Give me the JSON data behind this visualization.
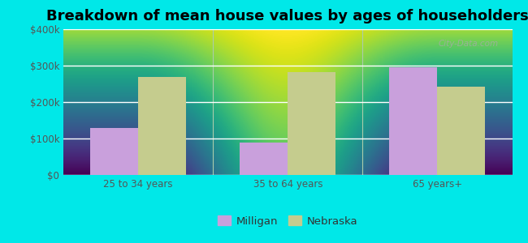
{
  "title": "Breakdown of mean house values by ages of householders",
  "categories": [
    "25 to 34 years",
    "35 to 64 years",
    "65 years+"
  ],
  "milligan_values": [
    130000,
    90000,
    295000
  ],
  "nebraska_values": [
    268000,
    283000,
    243000
  ],
  "milligan_color": "#c9a0dc",
  "nebraska_color": "#c5cc8e",
  "background_outer": "#00e8e8",
  "background_inner_top": "#f5faf5",
  "background_inner_bottom": "#d8f0d8",
  "ylim": [
    0,
    400000
  ],
  "yticks": [
    0,
    100000,
    200000,
    300000,
    400000
  ],
  "ytick_labels": [
    "$0",
    "$100k",
    "$200k",
    "$300k",
    "$400k"
  ],
  "bar_width": 0.32,
  "legend_labels": [
    "Milligan",
    "Nebraska"
  ],
  "title_fontsize": 13,
  "tick_fontsize": 8.5,
  "legend_fontsize": 9.5
}
